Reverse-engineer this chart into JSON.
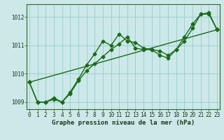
{
  "xlabel": "Graphe pression niveau de la mer (hPa)",
  "bg_color": "#cce8e8",
  "grid_color": "#99cccc",
  "line_color": "#1a6b1a",
  "line1": [
    1009.7,
    1009.0,
    1009.0,
    1009.1,
    1009.0,
    1009.35,
    1009.8,
    1010.3,
    1010.7,
    1011.15,
    1011.0,
    1011.4,
    1011.15,
    1011.1,
    1010.9,
    1010.85,
    1010.8,
    1010.65,
    1010.85,
    1011.15,
    1011.6,
    1012.1,
    1012.15,
    1011.55
  ],
  "line2": [
    1009.7,
    1009.0,
    1009.0,
    1009.15,
    1009.0,
    1009.3,
    1009.75,
    1010.1,
    1010.35,
    1010.6,
    1010.85,
    1011.05,
    1011.3,
    1010.9,
    1010.85,
    1010.85,
    1010.65,
    1010.55,
    1010.85,
    1011.3,
    1011.75,
    1012.1,
    1012.1,
    1011.55
  ],
  "line3_x": [
    0,
    23
  ],
  "line3_y": [
    1009.7,
    1011.55
  ],
  "xlim": [
    -0.3,
    23.3
  ],
  "ylim": [
    1008.75,
    1012.45
  ],
  "yticks": [
    1009,
    1010,
    1011,
    1012
  ],
  "xticks": [
    0,
    1,
    2,
    3,
    4,
    5,
    6,
    7,
    8,
    9,
    10,
    11,
    12,
    13,
    14,
    15,
    16,
    17,
    18,
    19,
    20,
    21,
    22,
    23
  ],
  "marker": "D",
  "markersize": 2.5,
  "linewidth": 1.0,
  "tick_fontsize": 5.5,
  "xlabel_fontsize": 6.5,
  "spine_color": "#336633"
}
